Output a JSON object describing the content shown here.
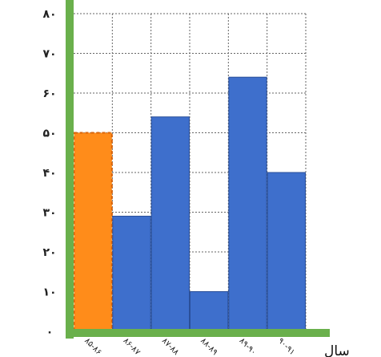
{
  "chart_data": {
    "type": "bar",
    "title": "",
    "xlabel": "سال",
    "ylabel": "",
    "ylim": [
      0,
      80
    ],
    "yticks": [
      0,
      10,
      20,
      30,
      40,
      50,
      60,
      70,
      80
    ],
    "ytick_labels": [
      "۰",
      "۱۰",
      "۲۰",
      "۳۰",
      "۴۰",
      "۵۰",
      "۶۰",
      "۷۰",
      "۸۰"
    ],
    "categories": [
      "۸۵-۸۶",
      "۸۶-۸۷",
      "۸۷-۸۸",
      "۸۸-۸۹",
      "۸۹-۹۰",
      "۹۰-۹۱"
    ],
    "values": [
      50,
      29,
      54,
      10,
      64,
      40
    ],
    "grid": true,
    "colors": {
      "highlight": "#ff8c1a",
      "highlight_border": "#d9640b",
      "bar": "#3e6fcc",
      "bar_border": "#2a4f99",
      "axis": "#6ab04c",
      "grid": "#666666"
    },
    "highlight_index": 0
  }
}
